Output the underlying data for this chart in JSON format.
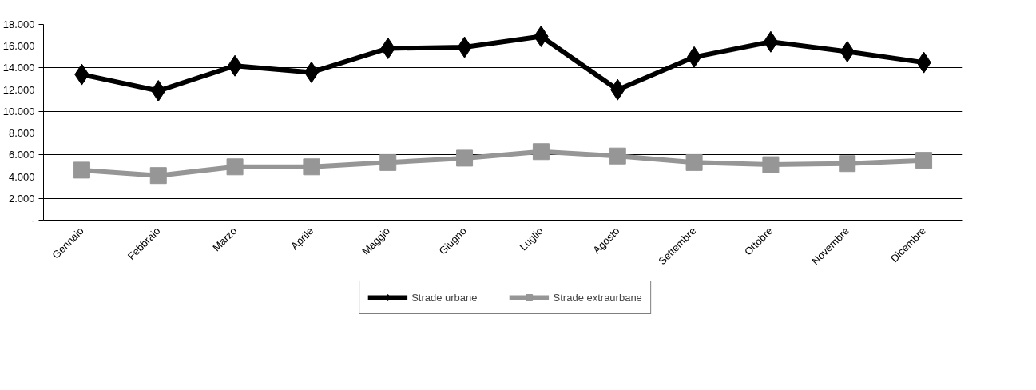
{
  "chart_data": {
    "type": "line",
    "categories": [
      "Gennaio",
      "Febbraio",
      "Marzo",
      "Aprile",
      "Maggio",
      "Giugno",
      "Luglio",
      "Agosto",
      "Settembre",
      "Ottobre",
      "Novembre",
      "Dicembre"
    ],
    "series": [
      {
        "name": "Strade urbane",
        "color": "#000000",
        "marker": "diamond",
        "values": [
          13400,
          11900,
          14200,
          13600,
          15800,
          15900,
          16900,
          12000,
          15000,
          16400,
          15500,
          14500
        ]
      },
      {
        "name": "Strade extraurbane",
        "color": "#969696",
        "marker": "square",
        "values": [
          4600,
          4100,
          4900,
          4900,
          5300,
          5700,
          6300,
          5900,
          5300,
          5100,
          5200,
          5500
        ]
      }
    ],
    "ylim": [
      0,
      18000
    ],
    "yticks": [
      {
        "value": 0,
        "label": "-"
      },
      {
        "value": 2000,
        "label": "2.000"
      },
      {
        "value": 4000,
        "label": "4.000"
      },
      {
        "value": 6000,
        "label": "6.000"
      },
      {
        "value": 8000,
        "label": "8.000"
      },
      {
        "value": 10000,
        "label": "10.000"
      },
      {
        "value": 12000,
        "label": "12.000"
      },
      {
        "value": 14000,
        "label": "14.000"
      },
      {
        "value": 16000,
        "label": "16.000"
      },
      {
        "value": 18000,
        "label": "18.000"
      }
    ],
    "grid": "y",
    "legend": "bottom",
    "line_style": "solid"
  }
}
